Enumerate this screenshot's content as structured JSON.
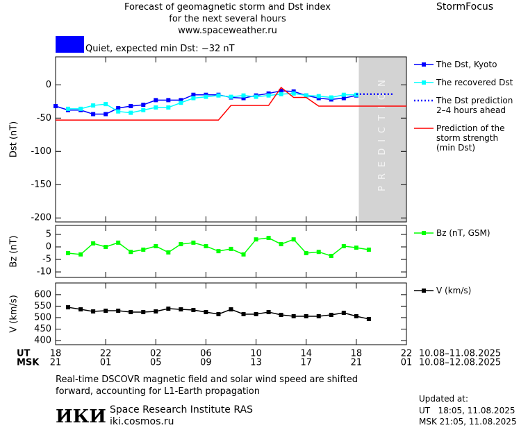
{
  "header": {
    "title_lines": [
      "Forecast of geomagnetic storm and Dst index",
      "for the next several hours",
      "www.spaceweather.ru"
    ],
    "brand": "StormFocus"
  },
  "status": {
    "color": "#0000ff",
    "text": "Quiet, expected min Dst: −32 nT"
  },
  "chart_data": [
    {
      "type": "line",
      "ylabel": "Dst (nT)",
      "ylim": [
        -206,
        42
      ],
      "yticks": [
        0,
        -50,
        -100,
        -150,
        -200
      ],
      "xlim": [
        0,
        28
      ],
      "prediction_region": {
        "x": [
          24.2,
          28
        ],
        "label": "PREDICTION",
        "color": "#d3d3d3"
      },
      "series": [
        {
          "name": "The Dst, Kyoto",
          "color": "#0000ff",
          "marker": "square",
          "x": [
            0,
            1,
            2,
            3,
            4,
            5,
            6,
            7,
            8,
            9,
            10,
            11,
            12,
            13,
            14,
            15,
            16,
            17,
            18,
            19,
            20,
            21,
            22,
            23,
            24
          ],
          "values": [
            -32,
            -38,
            -38,
            -44,
            -44,
            -35,
            -32,
            -30,
            -23,
            -23,
            -23,
            -15,
            -15,
            -15,
            -19,
            -20,
            -16,
            -13,
            -9,
            -10,
            -16,
            -20,
            -22,
            -20,
            -16
          ]
        },
        {
          "name": "The recovered Dst",
          "color": "#00ffff",
          "marker": "square",
          "x": [
            1,
            2,
            3,
            4,
            5,
            6,
            7,
            8,
            9,
            10,
            11,
            12,
            13,
            14,
            15,
            16,
            17,
            18,
            19,
            20,
            21,
            22,
            23,
            24
          ],
          "values": [
            -36,
            -36,
            -31,
            -29,
            -40,
            -42,
            -38,
            -34,
            -34,
            -27,
            -20,
            -18,
            -16,
            -18,
            -16,
            -18,
            -16,
            -14,
            -13,
            -16,
            -17,
            -19,
            -15,
            -15
          ]
        },
        {
          "name": "The Dst prediction\n2–4 hours ahead",
          "color": "#0000ff",
          "dash": "dotted",
          "x": [
            24,
            25,
            26,
            27
          ],
          "values": [
            -14,
            -14,
            -14,
            -14
          ]
        },
        {
          "name": "Prediction of the\nstorm strength\n(min Dst)",
          "color": "#ff0000",
          "x": [
            0,
            13,
            14,
            17,
            18,
            19,
            20,
            21,
            28
          ],
          "values": [
            -53,
            -53,
            -31,
            -31,
            -4,
            -19,
            -19,
            -32,
            -32
          ]
        }
      ]
    },
    {
      "type": "line",
      "ylabel": "Bz (nT)",
      "ylim": [
        -12.2,
        8.6
      ],
      "yticks": [
        5,
        0,
        -5,
        -10
      ],
      "xlim": [
        0,
        28
      ],
      "series": [
        {
          "name": "Bz (nT, GSM)",
          "color": "#00ff00",
          "marker": "square",
          "x": [
            1,
            2,
            3,
            4,
            5,
            6,
            7,
            8,
            9,
            10,
            11,
            12,
            13,
            14,
            15,
            16,
            17,
            18,
            19,
            20,
            21,
            22,
            23,
            24,
            25
          ],
          "values": [
            -2.5,
            -3,
            1.4,
            0,
            1.7,
            -2,
            -1.1,
            0.3,
            -2.2,
            1.1,
            1.7,
            0.3,
            -1.7,
            -0.8,
            -3,
            3,
            3.6,
            1.1,
            3,
            -2.5,
            -2,
            -3.6,
            0.3,
            -0.3,
            -1.1
          ]
        }
      ]
    },
    {
      "type": "line",
      "ylabel": "V (km/s)",
      "ylim": [
        382,
        651
      ],
      "yticks": [
        600,
        550,
        500,
        450,
        400
      ],
      "xlim": [
        0,
        28
      ],
      "xlabel": "UT",
      "xrange_label": "10.08–11.08.2025",
      "xticks": [
        {
          "value": 0,
          "label": "18"
        },
        {
          "value": 4,
          "label": "22"
        },
        {
          "value": 8,
          "label": "02"
        },
        {
          "value": 12,
          "label": "06"
        },
        {
          "value": 16,
          "label": "10"
        },
        {
          "value": 20,
          "label": "14"
        },
        {
          "value": 24,
          "label": "18"
        },
        {
          "value": 28,
          "label": "22"
        }
      ],
      "x2label": "MSK",
      "x2range_label": "10.08–12.08.2025",
      "x2ticks": [
        {
          "value": 0,
          "label": "21"
        },
        {
          "value": 4,
          "label": "01"
        },
        {
          "value": 8,
          "label": "05"
        },
        {
          "value": 12,
          "label": "09"
        },
        {
          "value": 16,
          "label": "13"
        },
        {
          "value": 20,
          "label": "17"
        },
        {
          "value": 24,
          "label": "21"
        },
        {
          "value": 28,
          "label": "01"
        }
      ],
      "series": [
        {
          "name": "V (km/s)",
          "color": "#000000",
          "marker": "square",
          "x": [
            1,
            2,
            3,
            4,
            5,
            6,
            7,
            8,
            9,
            10,
            11,
            12,
            13,
            14,
            15,
            16,
            17,
            18,
            19,
            20,
            21,
            22,
            23,
            24,
            25
          ],
          "values": [
            545,
            536,
            527,
            530,
            530,
            524,
            524,
            527,
            539,
            536,
            533,
            524,
            515,
            536,
            515,
            515,
            524,
            512,
            506,
            506,
            506,
            512,
            521,
            506,
            494
          ]
        }
      ]
    }
  ],
  "footer": {
    "note_lines": [
      "Real-time DSCOVR magnetic field and solar wind speed are shifted",
      "forward, accounting for L1-Earth propagation"
    ],
    "logo": "ИКИ",
    "institute": "Space Research Institute RAS",
    "url": "iki.cosmos.ru",
    "updated": [
      "Updated at:",
      "UT   18:05, 11.08.2025",
      "MSK 21:05, 11.08.2025"
    ]
  }
}
